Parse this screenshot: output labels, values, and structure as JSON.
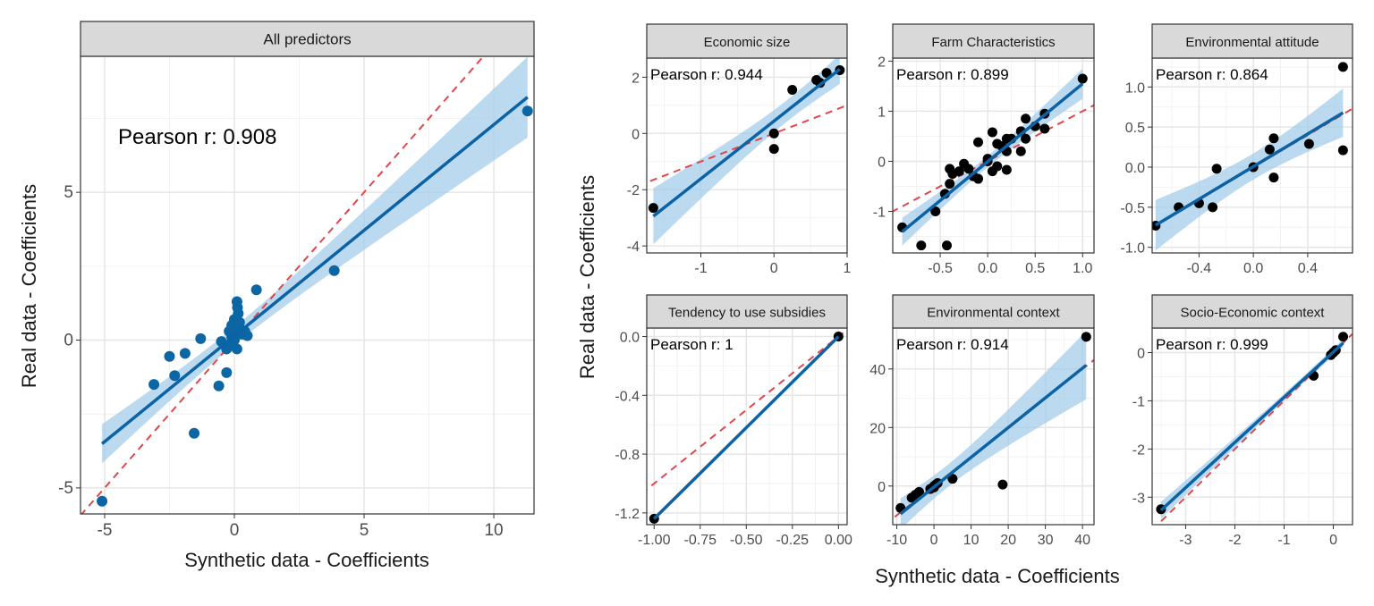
{
  "colors": {
    "fit_line": "#0b62a4",
    "ci_band": "#9ecae9",
    "identity_line": "#e0474c",
    "main_points": "#0b66a3",
    "facet_points": "#000000",
    "strip_fill": "#d9d9d9"
  },
  "axis_titles": {
    "main_x": "Synthetic data - Coefficients",
    "main_y": "Real data - Coefficients",
    "facets_x": "Synthetic data - Coefficients",
    "facets_y": "Real data - Coefficients"
  },
  "chart_data": [
    {
      "type": "scatter",
      "title": "All predictors",
      "annotation": "Pearson r: 0.908",
      "xlim": [
        -5.93,
        11.55
      ],
      "ylim": [
        -5.88,
        9.6
      ],
      "xticks": [
        -5,
        0,
        5,
        10
      ],
      "yticks": [
        -5,
        0,
        5
      ],
      "xtick_labels": [
        "-5",
        "0",
        "5",
        "10"
      ],
      "ytick_labels": [
        "-5",
        "0",
        "5"
      ],
      "grid": true,
      "fit": "linear regression with confidence band",
      "reference_line": "y = x (dashed)",
      "points": [
        [
          -5.1,
          -5.45
        ],
        [
          -3.1,
          -1.5
        ],
        [
          -2.5,
          -0.55
        ],
        [
          -2.3,
          -1.2
        ],
        [
          -1.9,
          -0.45
        ],
        [
          -1.3,
          0.05
        ],
        [
          -1.55,
          -3.15
        ],
        [
          -0.6,
          -1.55
        ],
        [
          -0.3,
          -1.1
        ],
        [
          -0.5,
          -0.05
        ],
        [
          11.3,
          7.75
        ],
        [
          3.85,
          2.35
        ],
        [
          0.85,
          1.7
        ],
        [
          0.1,
          1.3
        ],
        [
          0.12,
          1.1
        ],
        [
          0.15,
          0.9
        ],
        [
          0.0,
          0.7
        ],
        [
          -0.1,
          0.5
        ],
        [
          0.2,
          0.4
        ],
        [
          0.3,
          0.2
        ],
        [
          0.5,
          0.15
        ],
        [
          0.0,
          0.0
        ],
        [
          -0.2,
          -0.2
        ],
        [
          0.1,
          -0.3
        ],
        [
          -0.3,
          -0.3
        ],
        [
          0.05,
          0.2
        ],
        [
          0.2,
          0.6
        ],
        [
          -0.1,
          0.1
        ],
        [
          0.4,
          0.3
        ],
        [
          -0.2,
          0.3
        ]
      ]
    },
    {
      "type": "scatter",
      "title": "Economic size",
      "annotation": "Pearson r: 0.944",
      "xlim": [
        -1.74,
        1.0
      ],
      "ylim": [
        -4.25,
        2.68
      ],
      "xticks": [
        -1,
        0,
        1
      ],
      "yticks": [
        -4,
        -2,
        0,
        2
      ],
      "xtick_labels": [
        "-1",
        "0",
        "1"
      ],
      "ytick_labels": [
        "-4",
        "-2",
        "0",
        "2"
      ],
      "points": [
        [
          -1.65,
          -2.65
        ],
        [
          0,
          0
        ],
        [
          0,
          -0.55
        ],
        [
          0.25,
          1.55
        ],
        [
          0.58,
          1.9
        ],
        [
          0.63,
          1.8
        ],
        [
          0.72,
          2.15
        ],
        [
          0.9,
          2.25
        ]
      ]
    },
    {
      "type": "scatter",
      "title": "Farm Characteristics",
      "annotation": "Pearson r: 0.899",
      "xlim": [
        -1.0,
        1.12
      ],
      "ylim": [
        -1.83,
        2.06
      ],
      "xticks": [
        -0.5,
        0.0,
        0.5,
        1.0
      ],
      "yticks": [
        -1,
        0,
        1,
        2
      ],
      "xtick_labels": [
        "-0.5",
        "0.0",
        "0.5",
        "1.0"
      ],
      "ytick_labels": [
        "-1",
        "0",
        "1",
        "2"
      ],
      "points": [
        [
          -0.9,
          -1.32
        ],
        [
          -0.7,
          -1.68
        ],
        [
          -0.43,
          -1.68
        ],
        [
          -0.55,
          -1.0
        ],
        [
          -0.45,
          -0.65
        ],
        [
          -0.4,
          -0.45
        ],
        [
          -0.4,
          -0.15
        ],
        [
          -0.37,
          -0.25
        ],
        [
          -0.3,
          -0.2
        ],
        [
          -0.25,
          -0.05
        ],
        [
          -0.2,
          -0.15
        ],
        [
          -0.1,
          -0.35
        ],
        [
          -0.1,
          0.38
        ],
        [
          0,
          0
        ],
        [
          0,
          0.05
        ],
        [
          0.05,
          -0.2
        ],
        [
          0.05,
          0.58
        ],
        [
          0.1,
          -0.1
        ],
        [
          0.15,
          0.3
        ],
        [
          0.2,
          0.45
        ],
        [
          0.2,
          0.2
        ],
        [
          0.25,
          0.45
        ],
        [
          0.2,
          -0.17
        ],
        [
          0.35,
          0.2
        ],
        [
          0.35,
          0.6
        ],
        [
          0.4,
          0.85
        ],
        [
          0.4,
          0.45
        ],
        [
          0.5,
          0.7
        ],
        [
          0.6,
          0.95
        ],
        [
          0.6,
          0.65
        ],
        [
          1.0,
          1.65
        ],
        [
          -0.15,
          -0.3
        ],
        [
          0.1,
          0.35
        ]
      ]
    },
    {
      "type": "scatter",
      "title": "Environmental attitude",
      "annotation": "Pearson r: 0.864",
      "xlim": [
        -0.745,
        0.73
      ],
      "ylim": [
        -1.07,
        1.36
      ],
      "xticks": [
        -0.4,
        0.0,
        0.4
      ],
      "yticks": [
        -1.0,
        -0.5,
        0.0,
        0.5,
        1.0
      ],
      "xtick_labels": [
        "-0.4",
        "0.0",
        "0.4"
      ],
      "ytick_labels": [
        "-1.0",
        "-0.5",
        "0.0",
        "0.5",
        "1.0"
      ],
      "points": [
        [
          -0.72,
          -0.73
        ],
        [
          -0.55,
          -0.5
        ],
        [
          -0.4,
          -0.45
        ],
        [
          -0.3,
          -0.5
        ],
        [
          -0.27,
          -0.02
        ],
        [
          0,
          0
        ],
        [
          0.12,
          0.22
        ],
        [
          0.15,
          0.36
        ],
        [
          0.15,
          -0.13
        ],
        [
          0.41,
          0.29
        ],
        [
          0.66,
          1.25
        ],
        [
          0.66,
          0.21
        ]
      ]
    },
    {
      "type": "scatter",
      "title": "Tendency to use subsidies",
      "annotation": "Pearson r: 1",
      "xlim": [
        -1.04,
        0.047
      ],
      "ylim": [
        -1.28,
        0.058
      ],
      "xticks": [
        -1.0,
        -0.75,
        -0.5,
        -0.25,
        0.0
      ],
      "yticks": [
        -1.2,
        -0.8,
        -0.4,
        0.0
      ],
      "xtick_labels": [
        "-1.00",
        "-0.75",
        "-0.50",
        "-0.25",
        "0.00"
      ],
      "ytick_labels": [
        "-1.2",
        "-0.8",
        "-0.4",
        "0.0"
      ],
      "points": [
        [
          -1,
          -1.24
        ],
        [
          0,
          0
        ]
      ]
    },
    {
      "type": "scatter",
      "title": "Environmental context",
      "annotation": "Pearson r: 0.914",
      "xlim": [
        -11.1,
        43.1
      ],
      "ylim": [
        -13.2,
        54
      ],
      "xticks": [
        -10,
        0,
        10,
        20,
        30,
        40
      ],
      "yticks": [
        0,
        20,
        40
      ],
      "xtick_labels": [
        "-10",
        "0",
        "10",
        "20",
        "30",
        "40"
      ],
      "ytick_labels": [
        "0",
        "20",
        "40"
      ],
      "points": [
        [
          -9,
          -7.5
        ],
        [
          -6,
          -4
        ],
        [
          -5,
          -3
        ],
        [
          -4,
          -2
        ],
        [
          -1,
          -1
        ],
        [
          0,
          0
        ],
        [
          0.5,
          0.5
        ],
        [
          1,
          1
        ],
        [
          0,
          -0.5
        ],
        [
          5,
          2.5
        ],
        [
          18.5,
          0.5
        ],
        [
          41,
          51
        ]
      ]
    },
    {
      "type": "scatter",
      "title": "Socio-Economic context",
      "annotation": "Pearson r: 0.999",
      "xlim": [
        -3.68,
        0.39
      ],
      "ylim": [
        -3.57,
        0.51
      ],
      "xticks": [
        -3,
        -2,
        -1,
        0
      ],
      "yticks": [
        -3,
        -2,
        -1,
        0
      ],
      "xtick_labels": [
        "-3",
        "-2",
        "-1",
        "0"
      ],
      "ytick_labels": [
        "-3",
        "-2",
        "-1",
        "0"
      ],
      "points": [
        [
          -3.5,
          -3.25
        ],
        [
          -0.4,
          -0.48
        ],
        [
          -0.05,
          -0.05
        ],
        [
          0,
          0
        ],
        [
          0.05,
          0.05
        ],
        [
          0.2,
          0.33
        ]
      ]
    }
  ]
}
